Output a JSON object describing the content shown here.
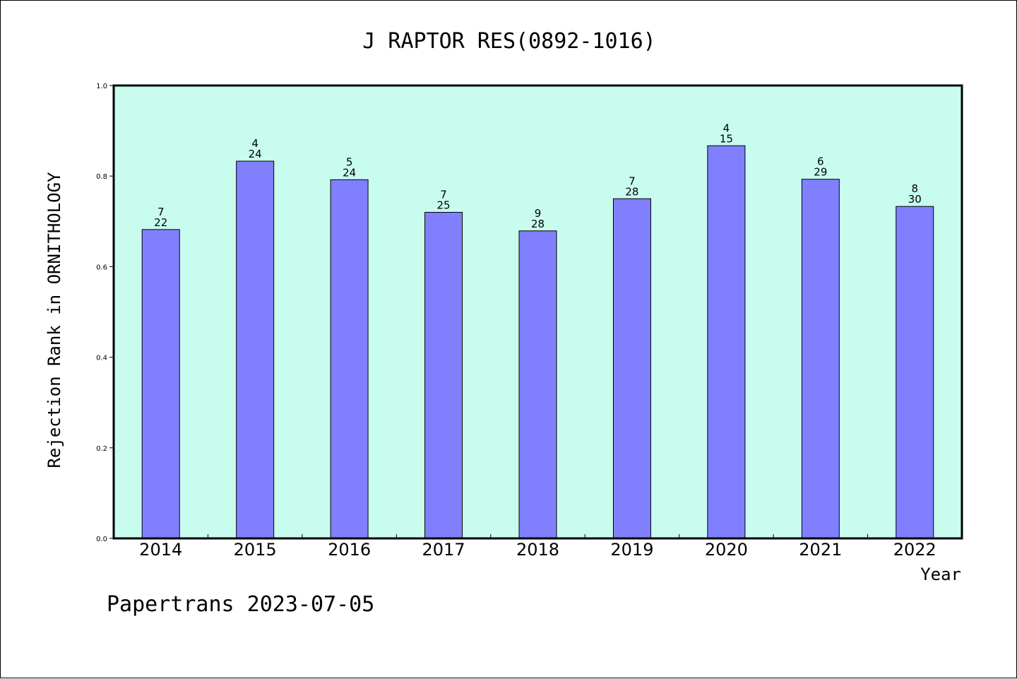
{
  "chart_data": {
    "type": "bar",
    "title": "J RAPTOR RES(0892-1016)",
    "xlabel": "Year",
    "ylabel": "Rejection Rank in ORNITHOLOGY",
    "ylim": [
      0,
      1.0
    ],
    "yticks": [
      "0.0",
      "0.2",
      "0.4",
      "0.6",
      "0.8",
      "1.0"
    ],
    "categories": [
      "2014",
      "2015",
      "2016",
      "2017",
      "2018",
      "2019",
      "2020",
      "2021",
      "2022"
    ],
    "values": [
      0.682,
      0.833,
      0.792,
      0.72,
      0.679,
      0.75,
      0.867,
      0.793,
      0.733
    ],
    "labels_top": [
      "7",
      "4",
      "5",
      "7",
      "9",
      "7",
      "4",
      "6",
      "8"
    ],
    "labels_bottom": [
      "22",
      "24",
      "24",
      "25",
      "28",
      "28",
      "15",
      "29",
      "30"
    ],
    "grid": false,
    "colors": {
      "plot_background": "#c8fcee",
      "bar_fill": "#8080ff",
      "bar_stroke": "#000000"
    }
  },
  "footer": "Papertrans 2023-07-05"
}
